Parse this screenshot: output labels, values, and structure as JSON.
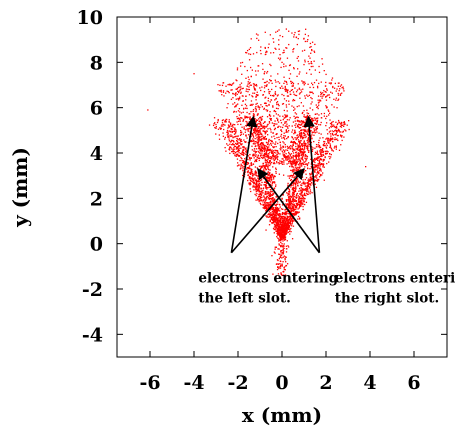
{
  "chart_data": {
    "type": "scatter",
    "title": "",
    "xlabel": "x (mm)",
    "ylabel": "y (mm)",
    "xlim": [
      -7.5,
      7.5
    ],
    "ylim": [
      -5,
      10
    ],
    "xticks": [
      -6,
      -4,
      -2,
      0,
      2,
      4,
      6
    ],
    "yticks": [
      -4,
      -2,
      0,
      2,
      4,
      6,
      8,
      10
    ],
    "marker_color": "#ff0000",
    "grid": false,
    "legend": "none",
    "series": [
      {
        "description": "electron impact points (dense red dot cloud, two V-shaped streaks converging near x=0)",
        "sample_points": [
          [
            0,
            -1.4
          ],
          [
            0,
            0
          ],
          [
            0,
            2
          ],
          [
            -0.5,
            3
          ],
          [
            0.5,
            3
          ],
          [
            -1.2,
            5
          ],
          [
            1.2,
            5
          ],
          [
            -2.5,
            6
          ],
          [
            2.5,
            6
          ],
          [
            0,
            8
          ],
          [
            -6.1,
            5.9
          ],
          [
            -4.0,
            7.5
          ],
          [
            3.8,
            3.4
          ]
        ]
      }
    ],
    "annotations": [
      {
        "lines": [
          "electrons entering",
          "the left slot."
        ],
        "anchor": [
          -3.8,
          -1.0
        ],
        "arrows_to": [
          [
            -1.3,
            5.6
          ],
          [
            1.0,
            3.3
          ]
        ]
      },
      {
        "lines": [
          "electrons entering",
          "the right slot."
        ],
        "anchor": [
          2.4,
          -1.0
        ],
        "arrows_to": [
          [
            1.2,
            5.6
          ],
          [
            -1.1,
            3.3
          ]
        ]
      }
    ]
  }
}
